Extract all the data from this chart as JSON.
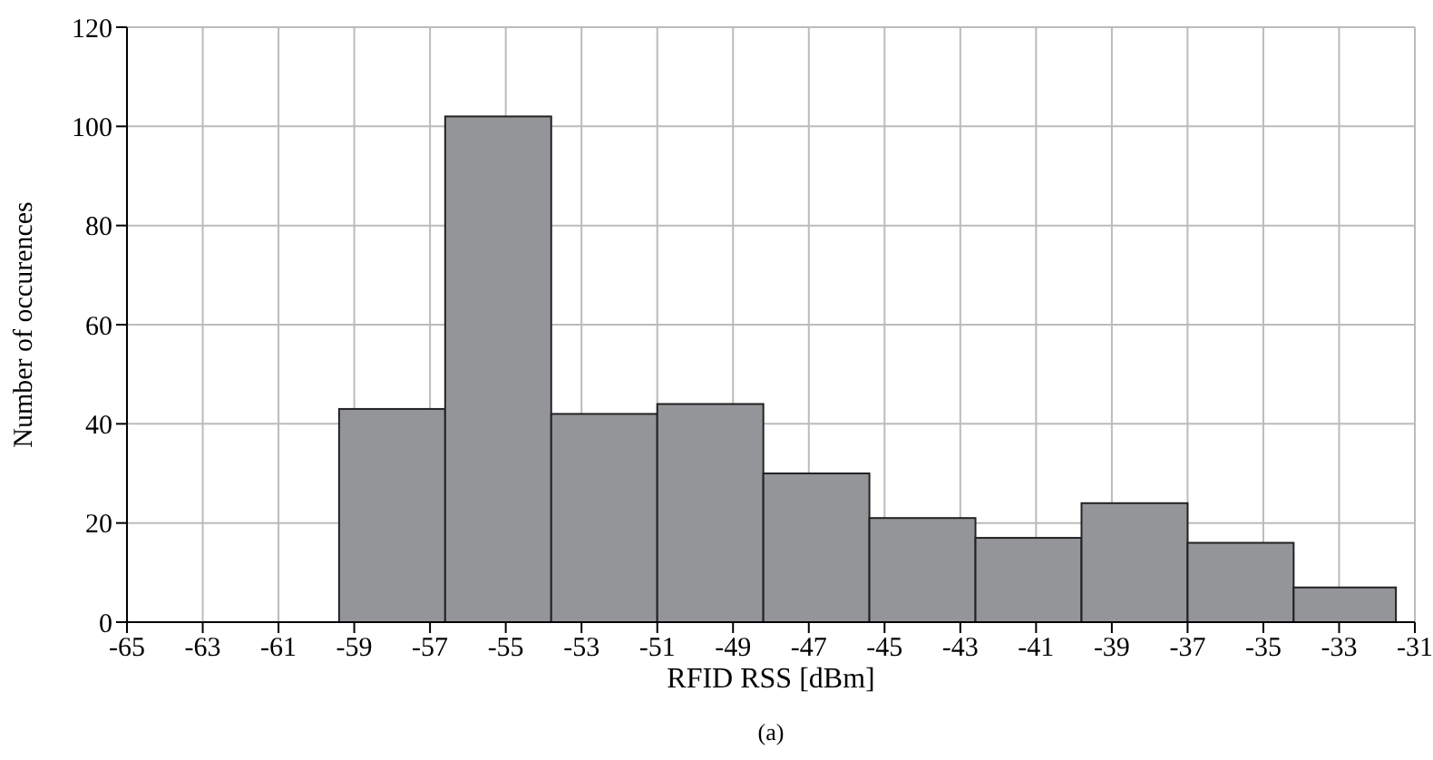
{
  "chart_data": {
    "type": "histogram",
    "xlabel": "RFID RSS [dBm]",
    "ylabel": "Number of occurences",
    "annotations": [
      "(a)"
    ],
    "bins": [
      -59.4,
      -56.6,
      -53.8,
      -51.0,
      -48.2,
      -45.4,
      -42.6,
      -39.8,
      -37.0,
      -34.2,
      -31.5
    ],
    "values": [
      43,
      102,
      42,
      44,
      30,
      21,
      17,
      24,
      16,
      7
    ],
    "color": "#949599",
    "xlim": [
      -65,
      -31
    ],
    "xticks": [
      -65,
      -63,
      -61,
      -59,
      -57,
      -55,
      -53,
      -51,
      -49,
      -47,
      -45,
      -43,
      -41,
      -39,
      -37,
      -35,
      -33,
      -31
    ],
    "ylim": [
      0,
      120
    ],
    "yticks": [
      0,
      20,
      40,
      60,
      80,
      100,
      120
    ],
    "grid": true
  }
}
